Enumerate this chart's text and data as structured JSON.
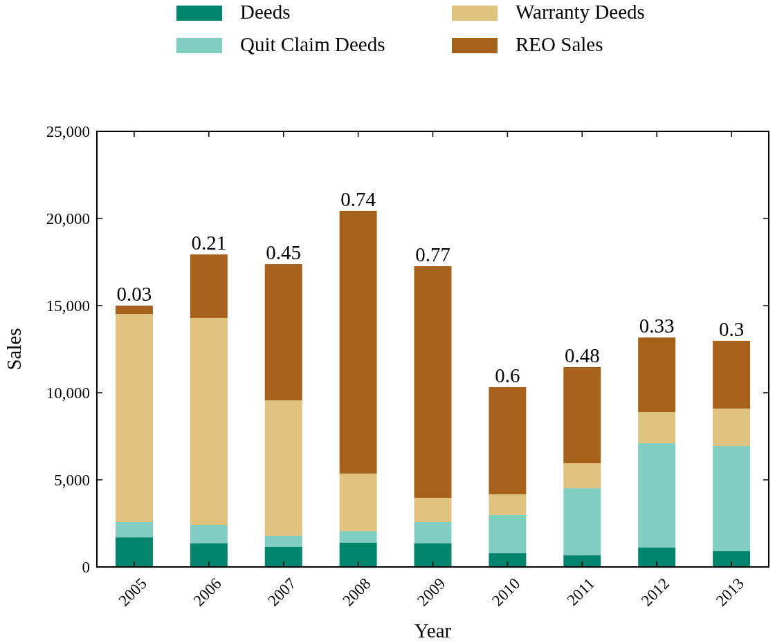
{
  "chart_data": {
    "type": "bar",
    "stacked": true,
    "xlabel": "Year",
    "ylabel": "Sales",
    "categories": [
      "2005",
      "2006",
      "2007",
      "2008",
      "2009",
      "2010",
      "2011",
      "2012",
      "2013"
    ],
    "series": [
      {
        "name": "Deeds",
        "color": "#00846b",
        "values": [
          1700,
          1350,
          1150,
          1390,
          1350,
          790,
          670,
          1110,
          910
        ]
      },
      {
        "name": "Quit Claim Deeds",
        "color": "#80cdc1",
        "values": [
          880,
          1070,
          640,
          670,
          1230,
          2190,
          3850,
          5990,
          6030
        ]
      },
      {
        "name": "Warranty Deeds",
        "color": "#dfc27d",
        "values": [
          11940,
          11870,
          7770,
          3300,
          1390,
          1190,
          1430,
          1790,
          2150
        ]
      },
      {
        "name": "REO Sales",
        "color": "#a6611a",
        "values": [
          480,
          3650,
          7820,
          15080,
          13290,
          6150,
          5520,
          4280,
          3890
        ]
      }
    ],
    "ylim": [
      0,
      25000
    ],
    "yticks": [
      {
        "value": 0,
        "label": "0"
      },
      {
        "value": 5000,
        "label": "5,000"
      },
      {
        "value": 10000,
        "label": "10,000"
      },
      {
        "value": 15000,
        "label": "15,000"
      },
      {
        "value": 20000,
        "label": "20,000"
      },
      {
        "value": 25000,
        "label": "25,000"
      }
    ],
    "annotations": [
      {
        "text": "0.03",
        "x": "2005",
        "y": 15000
      },
      {
        "text": "0.21",
        "x": "2006",
        "y": 17940
      },
      {
        "text": "0.45",
        "x": "2007",
        "y": 17380
      },
      {
        "text": "0.74",
        "x": "2008",
        "y": 20440
      },
      {
        "text": "0.77",
        "x": "2009",
        "y": 17260
      },
      {
        "text": "0.6",
        "x": "2010",
        "y": 10320
      },
      {
        "text": "0.48",
        "x": "2011",
        "y": 11470
      },
      {
        "text": "0.33",
        "x": "2012",
        "y": 13170
      },
      {
        "text": "0.3",
        "x": "2013",
        "y": 12980
      }
    ],
    "legend": "top",
    "grid": false
  }
}
